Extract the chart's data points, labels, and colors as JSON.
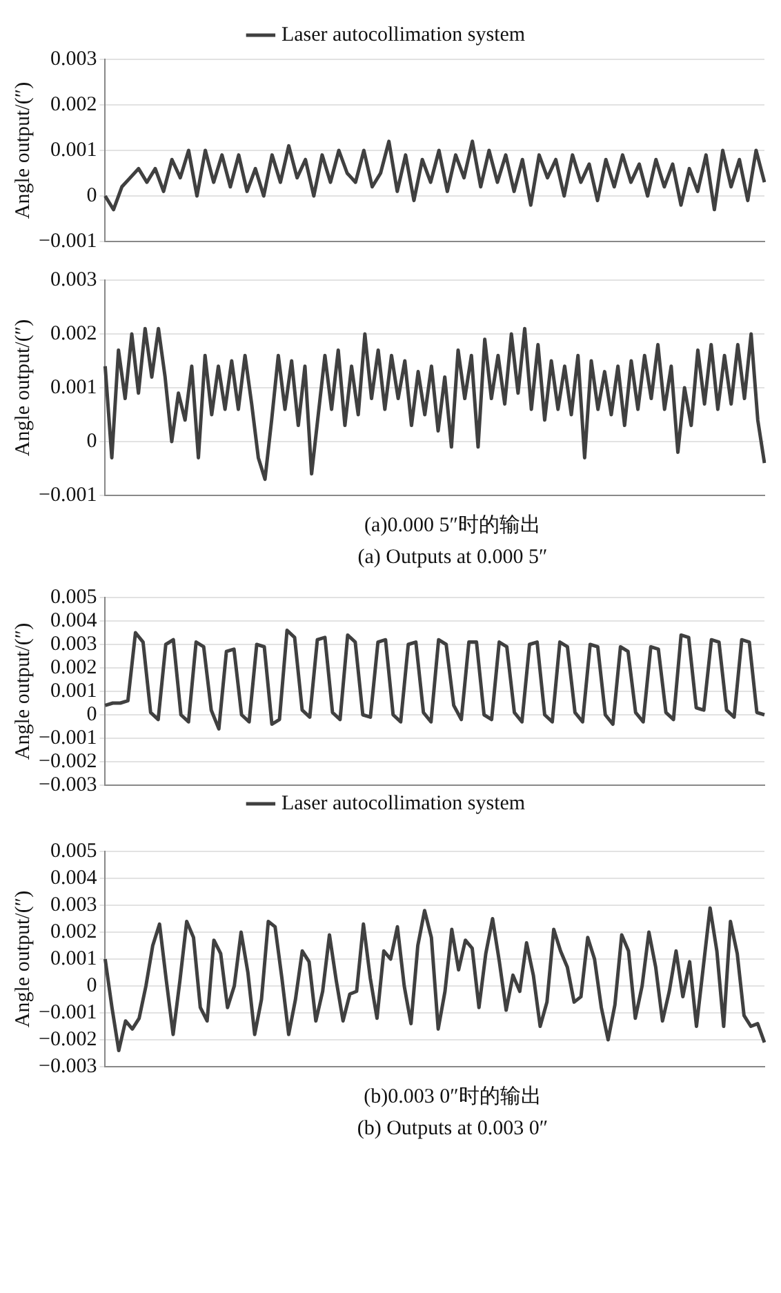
{
  "chart_data": [
    {
      "type": "line",
      "ylabel": "Angle output/(″)",
      "ylim": [
        -0.001,
        0.003
      ],
      "yticks": [
        {
          "value": -0.001,
          "label": "−0.001"
        },
        0,
        0.001,
        0.002,
        0.003
      ],
      "grid": "y",
      "legend": "top",
      "tick_labels": "y",
      "marker": "none",
      "line_style": "solid",
      "categories": [
        null,
        null,
        null,
        null,
        null,
        null,
        null,
        null,
        null,
        null,
        null,
        null,
        null,
        null,
        null,
        null,
        null,
        null,
        null,
        null,
        null,
        null,
        null,
        null,
        null,
        null,
        null,
        null,
        null,
        null,
        null,
        null,
        null,
        null,
        null,
        null,
        null,
        null,
        null,
        null,
        null,
        null,
        null,
        null,
        null,
        null,
        null,
        null,
        null,
        null,
        null,
        null,
        null,
        null,
        null,
        null,
        null,
        null,
        null,
        null,
        null,
        null,
        null,
        null,
        null,
        null,
        null,
        null,
        null,
        null,
        null,
        null,
        null,
        null,
        null,
        null,
        null,
        null,
        null,
        null
      ],
      "series": [
        {
          "name": "Laser autocollimation system",
          "color": "#404040",
          "values": [
            0,
            -0.0003,
            0.0002,
            0.0004,
            0.0006,
            0.0003,
            0.0006,
            0.0001,
            0.0008,
            0.0004,
            0.001,
            0,
            0.001,
            0.0003,
            0.0009,
            0.0002,
            0.0009,
            0.0001,
            0.0006,
            0,
            0.0009,
            0.0003,
            0.0011,
            0.0004,
            0.0008,
            0,
            0.0009,
            0.0003,
            0.001,
            0.0005,
            0.0003,
            0.001,
            0.0002,
            0.0005,
            0.0012,
            0.0001,
            0.0009,
            -0.0001,
            0.0008,
            0.0003,
            0.001,
            0.0001,
            0.0009,
            0.0004,
            0.0012,
            0.0002,
            0.001,
            0.0003,
            0.0009,
            0.0001,
            0.0008,
            -0.0002,
            0.0009,
            0.0004,
            0.0008,
            0,
            0.0009,
            0.0003,
            0.0007,
            -0.0001,
            0.0008,
            0.0002,
            0.0009,
            0.0003,
            0.0007,
            0,
            0.0008,
            0.0002,
            0.0007,
            -0.0002,
            0.0006,
            0.0001,
            0.0009,
            -0.0003,
            0.001,
            0.0002,
            0.0008,
            -0.0001,
            0.001,
            0.0003
          ]
        }
      ]
    },
    {
      "type": "line",
      "ylabel": "Angle output/(″)",
      "ylim": [
        -0.001,
        0.003
      ],
      "yticks": [
        {
          "value": -0.001,
          "label": "−0.001"
        },
        0,
        0.001,
        0.002,
        0.003
      ],
      "grid": "y",
      "tick_labels": "y",
      "marker": "none",
      "line_style": "solid",
      "annotations": [
        "(a)0.000 5″时的输出",
        "(a) Outputs at 0.000 5″"
      ],
      "categories": [
        null,
        null,
        null,
        null,
        null,
        null,
        null,
        null,
        null,
        null,
        null,
        null,
        null,
        null,
        null,
        null,
        null,
        null,
        null,
        null,
        null,
        null,
        null,
        null,
        null,
        null,
        null,
        null,
        null,
        null,
        null,
        null,
        null,
        null,
        null,
        null,
        null,
        null,
        null,
        null,
        null,
        null,
        null,
        null,
        null,
        null,
        null,
        null,
        null,
        null,
        null,
        null,
        null,
        null,
        null,
        null,
        null,
        null,
        null,
        null,
        null,
        null,
        null,
        null,
        null,
        null,
        null,
        null,
        null,
        null,
        null,
        null,
        null,
        null,
        null,
        null,
        null,
        null,
        null,
        null,
        null,
        null,
        null,
        null,
        null,
        null,
        null,
        null,
        null,
        null,
        null,
        null,
        null,
        null,
        null,
        null,
        null,
        null,
        null,
        null
      ],
      "series": [
        {
          "color": "#404040",
          "values": [
            0.0014,
            -0.0003,
            0.0017,
            0.0008,
            0.002,
            0.0009,
            0.0021,
            0.0012,
            0.0021,
            0.0012,
            0,
            0.0009,
            0.0004,
            0.0014,
            -0.0003,
            0.0016,
            0.0005,
            0.0014,
            0.0006,
            0.0015,
            0.0006,
            0.0016,
            0.0007,
            -0.0003,
            -0.0007,
            0.0004,
            0.0016,
            0.0006,
            0.0015,
            0.0003,
            0.0014,
            -0.0006,
            0.0005,
            0.0016,
            0.0006,
            0.0017,
            0.0003,
            0.0014,
            0.0005,
            0.002,
            0.0008,
            0.0017,
            0.0006,
            0.0016,
            0.0008,
            0.0015,
            0.0003,
            0.0013,
            0.0005,
            0.0014,
            0.0002,
            0.0012,
            -0.0001,
            0.0017,
            0.0008,
            0.0016,
            -0.0001,
            0.0019,
            0.0008,
            0.0016,
            0.0007,
            0.002,
            0.0009,
            0.0021,
            0.0006,
            0.0018,
            0.0004,
            0.0015,
            0.0006,
            0.0014,
            0.0005,
            0.0016,
            -0.0003,
            0.0015,
            0.0006,
            0.0013,
            0.0005,
            0.0014,
            0.0003,
            0.0015,
            0.0006,
            0.0016,
            0.0008,
            0.0018,
            0.0006,
            0.0014,
            -0.0002,
            0.001,
            0.0003,
            0.0017,
            0.0007,
            0.0018,
            0.0006,
            0.0016,
            0.0007,
            0.0018,
            0.0008,
            0.002,
            0.0004,
            -0.0004
          ]
        }
      ]
    },
    {
      "type": "line",
      "ylabel": "Angle output/(″)",
      "ylim": [
        -0.003,
        0.005
      ],
      "yticks": [
        {
          "value": -0.003,
          "label": "−0.003"
        },
        {
          "value": -0.002,
          "label": "−0.002"
        },
        {
          "value": -0.001,
          "label": "−0.001"
        },
        0,
        0.001,
        0.002,
        0.003,
        0.004,
        0.005
      ],
      "grid": "y",
      "legend": "bottom",
      "tick_labels": "y",
      "marker": "none",
      "line_style": "solid",
      "categories": [
        null,
        null,
        null,
        null,
        null,
        null,
        null,
        null,
        null,
        null,
        null,
        null,
        null,
        null,
        null,
        null,
        null,
        null,
        null,
        null,
        null,
        null,
        null,
        null,
        null,
        null,
        null,
        null,
        null,
        null,
        null,
        null,
        null,
        null,
        null,
        null,
        null,
        null,
        null,
        null,
        null,
        null,
        null,
        null,
        null,
        null,
        null,
        null,
        null,
        null,
        null,
        null,
        null,
        null,
        null,
        null,
        null,
        null,
        null,
        null,
        null,
        null,
        null,
        null,
        null,
        null,
        null,
        null,
        null,
        null,
        null,
        null,
        null,
        null,
        null,
        null,
        null,
        null,
        null,
        null,
        null,
        null,
        null,
        null,
        null,
        null,
        null,
        null
      ],
      "series": [
        {
          "name": "Laser autocollimation system",
          "color": "#404040",
          "values": [
            0.0004,
            0.0005,
            0.0005,
            0.0006,
            0.0035,
            0.0031,
            0.0001,
            -0.0002,
            0.003,
            0.0032,
            0,
            -0.0003,
            0.0031,
            0.0029,
            0.0002,
            -0.0006,
            0.0027,
            0.0028,
            0,
            -0.0003,
            0.003,
            0.0029,
            -0.0004,
            -0.0002,
            0.0036,
            0.0033,
            0.0002,
            -0.0001,
            0.0032,
            0.0033,
            0.0001,
            -0.0002,
            0.0034,
            0.0031,
            0,
            -0.0001,
            0.0031,
            0.0032,
            0,
            -0.0003,
            0.003,
            0.0031,
            0.0001,
            -0.0003,
            0.0032,
            0.003,
            0.0004,
            -0.0002,
            0.0031,
            0.0031,
            0,
            -0.0002,
            0.0031,
            0.0029,
            0.0001,
            -0.0003,
            0.003,
            0.0031,
            0,
            -0.0003,
            0.0031,
            0.0029,
            0.0001,
            -0.0003,
            0.003,
            0.0029,
            0,
            -0.0004,
            0.0029,
            0.0027,
            0.0001,
            -0.0003,
            0.0029,
            0.0028,
            0.0001,
            -0.0002,
            0.0034,
            0.0033,
            0.0003,
            0.0002,
            0.0032,
            0.0031,
            0.0002,
            -0.0001,
            0.0032,
            0.0031,
            0.0001,
            0
          ]
        }
      ]
    },
    {
      "type": "line",
      "ylabel": "Angle output/(″)",
      "ylim": [
        -0.003,
        0.005
      ],
      "yticks": [
        {
          "value": -0.003,
          "label": "−0.003"
        },
        {
          "value": -0.002,
          "label": "−0.002"
        },
        {
          "value": -0.001,
          "label": "−0.001"
        },
        0,
        0.001,
        0.002,
        0.003,
        0.004,
        0.005
      ],
      "grid": "y",
      "tick_labels": "y",
      "marker": "none",
      "line_style": "solid",
      "annotations": [
        "(b)0.003 0″时的输出",
        "(b) Outputs at 0.003 0″"
      ],
      "categories": [
        null,
        null,
        null,
        null,
        null,
        null,
        null,
        null,
        null,
        null,
        null,
        null,
        null,
        null,
        null,
        null,
        null,
        null,
        null,
        null,
        null,
        null,
        null,
        null,
        null,
        null,
        null,
        null,
        null,
        null,
        null,
        null,
        null,
        null,
        null,
        null,
        null,
        null,
        null,
        null,
        null,
        null,
        null,
        null,
        null,
        null,
        null,
        null,
        null,
        null,
        null,
        null,
        null,
        null,
        null,
        null,
        null,
        null,
        null,
        null,
        null,
        null,
        null,
        null,
        null,
        null,
        null,
        null,
        null,
        null,
        null,
        null,
        null,
        null,
        null,
        null,
        null,
        null,
        null,
        null,
        null,
        null,
        null,
        null,
        null,
        null,
        null,
        null,
        null,
        null,
        null,
        null,
        null,
        null,
        null,
        null,
        null,
        null
      ],
      "series": [
        {
          "color": "#404040",
          "values": [
            0.001,
            -0.0008,
            -0.0024,
            -0.0013,
            -0.0016,
            -0.0012,
            0,
            0.0015,
            0.0023,
            0.0002,
            -0.0018,
            0.0002,
            0.0024,
            0.0018,
            -0.0008,
            -0.0013,
            0.0017,
            0.0012,
            -0.0008,
            0,
            0.002,
            0.0005,
            -0.0018,
            -0.0005,
            0.0024,
            0.0022,
            0.0003,
            -0.0018,
            -0.0005,
            0.0013,
            0.0009,
            -0.0013,
            -0.0002,
            0.0019,
            0.0002,
            -0.0013,
            -0.0003,
            -0.0002,
            0.0023,
            0.0003,
            -0.0012,
            0.0013,
            0.001,
            0.0022,
            0,
            -0.0014,
            0.0015,
            0.0028,
            0.0018,
            -0.0016,
            -0.0002,
            0.0021,
            0.0006,
            0.0017,
            0.0014,
            -0.0008,
            0.0012,
            0.0025,
            0.0009,
            -0.0009,
            0.0004,
            -0.0002,
            0.0016,
            0.0004,
            -0.0015,
            -0.0006,
            0.0021,
            0.0013,
            0.0007,
            -0.0006,
            -0.0004,
            0.0018,
            0.001,
            -0.0008,
            -0.002,
            -0.0007,
            0.0019,
            0.0013,
            -0.0012,
            0,
            0.002,
            0.0007,
            -0.0013,
            -0.0002,
            0.0013,
            -0.0004,
            0.0009,
            -0.0015,
            0.0007,
            0.0029,
            0.0013,
            -0.0015,
            0.0024,
            0.0012,
            -0.0011,
            -0.0015,
            -0.0014,
            -0.0021
          ]
        }
      ]
    }
  ]
}
